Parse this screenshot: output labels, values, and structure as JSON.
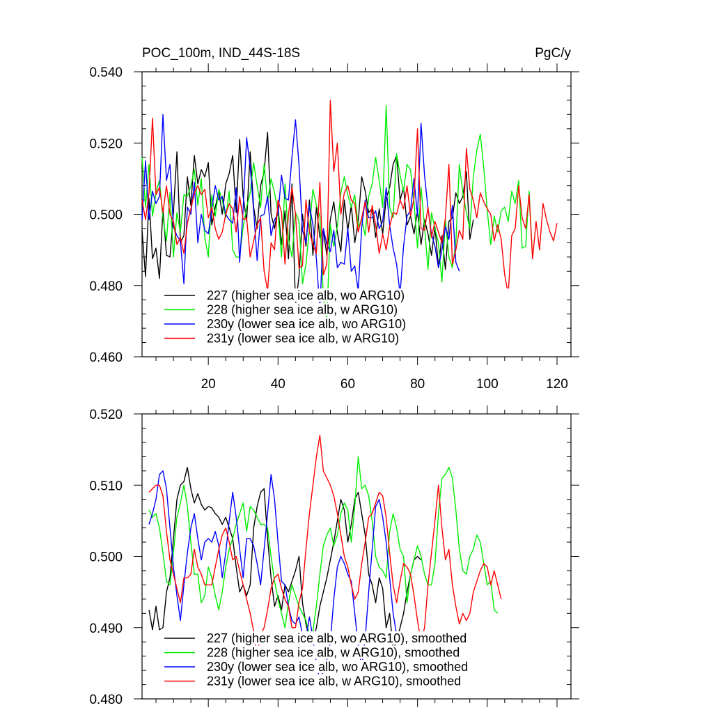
{
  "chart_data": [
    {
      "type": "line",
      "title": "POC_100m, IND_44S-18S",
      "units": "PgC/y",
      "xlabel": "",
      "ylabel": "",
      "xlim": [
        1,
        124
      ],
      "ylim": [
        0.46,
        0.54
      ],
      "xticks": [
        20,
        40,
        60,
        80,
        100,
        120
      ],
      "xtick_labels": [
        "20",
        "40",
        "60",
        "80",
        "100",
        "120"
      ],
      "yticks": [
        0.46,
        0.48,
        0.5,
        0.52,
        0.54
      ],
      "ytick_labels": [
        "0.460",
        "0.480",
        "0.500",
        "0.520",
        "0.540"
      ],
      "legend_position": "bottom-left",
      "series": [
        {
          "name": "227 (higher sea ice alb, wo ARG10)",
          "color": "#000000",
          "x_start": 1,
          "values": [
            0.4955,
            0.4825,
            0.5045,
            0.4875,
            0.4905,
            0.482,
            0.5015,
            0.4885,
            0.488,
            0.5005,
            0.5175,
            0.492,
            0.494,
            0.5105,
            0.5025,
            0.5165,
            0.5085,
            0.5125,
            0.5105,
            0.5145,
            0.497,
            0.502,
            0.5065,
            0.5,
            0.5085,
            0.5115,
            0.5165,
            0.5005,
            0.521,
            0.505,
            0.498,
            0.5175,
            0.502,
            0.496,
            0.508,
            0.512,
            0.523,
            0.5,
            0.496,
            0.502,
            0.4915,
            0.501,
            0.4875,
            0.5085,
            0.4745,
            0.4825,
            0.5,
            0.491,
            0.504,
            0.4885,
            0.502,
            0.4935,
            0.4955,
            0.4885,
            0.4985,
            0.5035,
            0.495,
            0.4895,
            0.504,
            0.4955,
            0.5025,
            0.492,
            0.498,
            0.5105,
            0.5065,
            0.5005,
            0.5015,
            0.4935,
            0.5015,
            0.4945,
            0.5045,
            0.5075,
            0.514,
            0.5165,
            0.504,
            0.5075,
            0.497,
            0.4995,
            0.4945,
            0.501,
            0.4915,
            0.4985,
            0.4945,
            0.4885,
            0.4965,
            0.485,
            0.494,
            0.4845,
            0.498,
            0.499,
            0.506,
            0.503,
            0.505,
            0.512,
            0.493,
            0.4985
          ]
        },
        {
          "name": "228 (higher sea ice alb, w ARG10)",
          "color": "#00ee00",
          "x_start": 1,
          "values": [
            0.516,
            0.502,
            0.514,
            0.4995,
            0.506,
            0.5095,
            0.499,
            0.4925,
            0.506,
            0.488,
            0.5005,
            0.495,
            0.5055,
            0.505,
            0.508,
            0.5125,
            0.5025,
            0.51,
            0.4935,
            0.488,
            0.5055,
            0.4995,
            0.507,
            0.504,
            0.499,
            0.5065,
            0.49,
            0.488,
            0.488,
            0.4965,
            0.502,
            0.506,
            0.5145,
            0.508,
            0.502,
            0.514,
            0.5035,
            0.51,
            0.506,
            0.5005,
            0.488,
            0.5085,
            0.493,
            0.488,
            0.5005,
            0.498,
            0.4805,
            0.486,
            0.496,
            0.507,
            0.5025,
            0.4995,
            0.4765,
            0.47,
            0.497,
            0.491,
            0.4965,
            0.506,
            0.5105,
            0.5055,
            0.502,
            0.5055,
            0.4965,
            0.4985,
            0.494,
            0.505,
            0.5085,
            0.516,
            0.5095,
            0.502,
            0.5305,
            0.502,
            0.499,
            0.517,
            0.511,
            0.5065,
            0.514,
            0.5125,
            0.5035,
            0.4905,
            0.5075,
            0.4965,
            0.4845,
            0.5005,
            0.496,
            0.492,
            0.481,
            0.4985,
            0.488,
            0.485,
            0.492,
            0.514,
            0.506,
            0.5005,
            0.496,
            0.5105,
            0.518,
            0.5225,
            0.513,
            0.501,
            0.4915,
            0.4995,
            0.495,
            0.501,
            0.502,
            0.498,
            0.5065,
            0.503,
            0.5095,
            0.4905,
            0.491,
            0.5065,
            0.4875
          ]
        },
        {
          "name": "230y (lower sea ice alb, wo ARG10)",
          "color": "#0000ff",
          "x_start": 1,
          "values": [
            0.4985,
            0.515,
            0.4985,
            0.5065,
            0.503,
            0.505,
            0.528,
            0.5095,
            0.514,
            0.4965,
            0.494,
            0.4925,
            0.4805,
            0.502,
            0.5,
            0.509,
            0.492,
            0.5,
            0.4955,
            0.4945,
            0.5015,
            0.508,
            0.504,
            0.505,
            0.5,
            0.4985,
            0.4975,
            0.5075,
            0.4865,
            0.5015,
            0.5215,
            0.5135,
            0.501,
            0.487,
            0.4995,
            0.5,
            0.505,
            0.494,
            0.4985,
            0.5,
            0.511,
            0.5045,
            0.504,
            0.516,
            0.5265,
            0.514,
            0.4955,
            0.492,
            0.5025,
            0.497,
            0.4875,
            0.473,
            0.496,
            0.4915,
            0.4895,
            0.4955,
            0.485,
            0.4865,
            0.486,
            0.496,
            0.484,
            0.4855,
            0.4785,
            0.4965,
            0.504,
            0.499,
            0.499,
            0.501,
            0.496,
            0.498,
            0.5075,
            0.497,
            0.4905,
            0.486,
            0.4775,
            0.491,
            0.4995,
            0.501,
            0.51,
            0.4995,
            0.5255,
            0.511,
            0.5015,
            0.4945,
            0.491,
            0.485,
            0.49,
            0.4965,
            0.493,
            0.5025,
            0.4865,
            0.484
          ]
        },
        {
          "name": "231y (lower sea ice alb, w ARG10)",
          "color": "#ff0000",
          "x_start": 1,
          "values": [
            0.504,
            0.4985,
            0.506,
            0.527,
            0.5055,
            0.5075,
            0.5005,
            0.508,
            0.5,
            0.498,
            0.4915,
            0.4935,
            0.489,
            0.4975,
            0.5015,
            0.506,
            0.508,
            0.5055,
            0.507,
            0.499,
            0.502,
            0.496,
            0.493,
            0.495,
            0.5,
            0.503,
            0.5015,
            0.495,
            0.505,
            0.4985,
            0.499,
            0.488,
            0.4925,
            0.497,
            0.499,
            0.484,
            0.4785,
            0.492,
            0.49,
            0.504,
            0.5005,
            0.486,
            0.5,
            0.5075,
            0.5,
            0.485,
            0.4855,
            0.504,
            0.495,
            0.4915,
            0.489,
            0.509,
            0.483,
            0.486,
            0.532,
            0.512,
            0.52,
            0.5,
            0.506,
            0.508,
            0.504,
            0.503,
            0.495,
            0.499,
            0.5035,
            0.495,
            0.5025,
            0.497,
            0.489,
            0.4945,
            0.49,
            0.4965,
            0.5005,
            0.5,
            0.504,
            0.5015,
            0.508,
            0.4995,
            0.5045,
            0.524,
            0.496,
            0.4955,
            0.502,
            0.4935,
            0.498,
            0.495,
            0.492,
            0.499,
            0.514,
            0.486,
            0.49,
            0.4955,
            0.493,
            0.5185,
            0.507,
            0.504,
            0.499,
            0.506,
            0.5035,
            0.5015,
            0.5,
            0.4925,
            0.497,
            0.493,
            0.483,
            0.4775,
            0.494,
            0.496,
            0.508,
            0.499,
            0.496,
            0.5055,
            0.4875,
            0.498,
            0.49,
            0.503,
            0.4985,
            0.495,
            0.4925,
            0.4975
          ]
        }
      ],
      "legend": [
        "227 (higher sea ice alb, wo ARG10)",
        "228 (higher sea ice alb, w ARG10)",
        "230y (lower sea ice alb, wo ARG10)",
        "231y (lower sea ice alb, w ARG10)"
      ]
    },
    {
      "type": "line",
      "title": "",
      "xlabel": "",
      "ylabel": "",
      "xlim": [
        1,
        124
      ],
      "ylim": [
        0.48,
        0.52
      ],
      "xticks": [
        20,
        40,
        60,
        80,
        100,
        120
      ],
      "yticks": [
        0.48,
        0.49,
        0.5,
        0.51,
        0.52
      ],
      "ytick_labels": [
        "0.480",
        "0.490",
        "0.500",
        "0.510",
        "0.520"
      ],
      "legend_position": "bottom-left",
      "series": [
        {
          "name": "227 (higher sea ice alb, wo ARG10), smoothed",
          "color": "#000000",
          "x_start": 3,
          "values": [
            0.4925,
            0.4897,
            0.493,
            0.4897,
            0.49,
            0.495,
            0.497,
            0.5025,
            0.508,
            0.51,
            0.5105,
            0.5125,
            0.5095,
            0.5075,
            0.5088,
            0.5073,
            0.5065,
            0.507,
            0.5068,
            0.506,
            0.5055,
            0.5045,
            0.5055,
            0.504,
            0.5025,
            0.4985,
            0.495,
            0.496,
            0.4945,
            0.496,
            0.504,
            0.507,
            0.509,
            0.5095,
            0.5025,
            0.497,
            0.493,
            0.4945,
            0.4925,
            0.496,
            0.495,
            0.4965,
            0.498,
            0.5,
            0.4935,
            0.4905,
            0.4885,
            0.488,
            0.49,
            0.493,
            0.495,
            0.497,
            0.4995,
            0.502,
            0.505,
            0.508,
            0.5065,
            0.502,
            0.5045,
            0.508,
            0.509,
            0.506,
            0.503,
            0.4975,
            0.496,
            0.4935,
            0.497,
            0.4955,
            0.49,
            0.492,
            0.487,
            0.488,
            0.49,
            0.492,
            0.495,
            0.4975,
            0.4995,
            0.5,
            0.4995
          ]
        },
        {
          "name": "228 (higher sea ice alb, w ARG10), smoothed",
          "color": "#00ee00",
          "x_start": 3,
          "values": [
            0.5065,
            0.5055,
            0.506,
            0.504,
            0.5005,
            0.4965,
            0.496,
            0.5005,
            0.5055,
            0.5075,
            0.51,
            0.507,
            0.502,
            0.4975,
            0.4975,
            0.4935,
            0.4945,
            0.4985,
            0.497,
            0.4945,
            0.4925,
            0.495,
            0.4985,
            0.501,
            0.5025,
            0.5045,
            0.506,
            0.5075,
            0.5035,
            0.507,
            0.5065,
            0.5055,
            0.5045,
            0.5045,
            0.504,
            0.5,
            0.4965,
            0.494,
            0.492,
            0.49,
            0.4935,
            0.496,
            0.4945,
            0.493,
            0.492,
            0.491,
            0.489,
            0.4895,
            0.493,
            0.4975,
            0.5015,
            0.503,
            0.504,
            0.5015,
            0.503,
            0.506,
            0.5075,
            0.5065,
            0.502,
            0.507,
            0.514,
            0.5095,
            0.51,
            0.5085,
            0.505,
            0.5,
            0.4985,
            0.498,
            0.497,
            0.5035,
            0.506,
            0.504,
            0.501,
            0.5,
            0.4935,
            0.4975,
            0.4995,
            0.5015,
            0.5,
            0.4975,
            0.496,
            0.496,
            0.499,
            0.506,
            0.511,
            0.5115,
            0.5125,
            0.511,
            0.5065,
            0.501,
            0.498,
            0.4975,
            0.5,
            0.501,
            0.503,
            0.502,
            0.499,
            0.496,
            0.4965,
            0.4925,
            0.492
          ]
        },
        {
          "name": "230y (lower sea ice alb, wo ARG10), smoothed",
          "color": "#0000ff",
          "x_start": 3,
          "values": [
            0.5045,
            0.506,
            0.508,
            0.5115,
            0.512,
            0.5095,
            0.504,
            0.4985,
            0.4945,
            0.491,
            0.496,
            0.5005,
            0.504,
            0.506,
            0.5025,
            0.4995,
            0.502,
            0.5025,
            0.502,
            0.5035,
            0.5015,
            0.497,
            0.5005,
            0.505,
            0.509,
            0.5055,
            0.501,
            0.497,
            0.5025,
            0.5025,
            0.5015,
            0.499,
            0.496,
            0.501,
            0.506,
            0.5115,
            0.508,
            0.502,
            0.4965,
            0.496,
            0.493,
            0.491,
            0.4905,
            0.4915,
            0.489,
            0.4885,
            0.4915,
            0.4885,
            0.485,
            0.4825,
            0.484,
            0.4855,
            0.488,
            0.494,
            0.4985,
            0.5,
            0.499,
            0.4975,
            0.4965,
            0.492,
            0.4875,
            0.4845,
            0.4885,
            0.495,
            0.501,
            0.507,
            0.508,
            0.5055,
            0.502,
            0.497,
            0.492,
            0.489,
            0.488,
            0.4885,
            0.489
          ]
        },
        {
          "name": "231y (lower sea ice alb, w ARG10), smoothed",
          "color": "#ff0000",
          "x_start": 3,
          "values": [
            0.509,
            0.5095,
            0.51,
            0.51,
            0.5085,
            0.5035,
            0.4995,
            0.4975,
            0.4955,
            0.4935,
            0.497,
            0.497,
            0.4975,
            0.501,
            0.4985,
            0.4975,
            0.496,
            0.496,
            0.496,
            0.4985,
            0.501,
            0.503,
            0.504,
            0.502,
            0.4995,
            0.5,
            0.498,
            0.496,
            0.494,
            0.492,
            0.4895,
            0.486,
            0.489,
            0.49,
            0.4925,
            0.4955,
            0.497,
            0.4975,
            0.4955,
            0.494,
            0.493,
            0.49,
            0.49,
            0.4935,
            0.4955,
            0.501,
            0.506,
            0.51,
            0.514,
            0.517,
            0.512,
            0.511,
            0.51,
            0.5085,
            0.506,
            0.503,
            0.5,
            0.4985,
            0.496,
            0.494,
            0.495,
            0.499,
            0.502,
            0.5055,
            0.506,
            0.5075,
            0.509,
            0.5085,
            0.5055,
            0.5005,
            0.496,
            0.4935,
            0.4965,
            0.499,
            0.4985,
            0.4975,
            0.4945,
            0.491,
            0.488,
            0.49,
            0.496,
            0.5005,
            0.505,
            0.51,
            0.504,
            0.4995,
            0.501,
            0.496,
            0.493,
            0.4905,
            0.492,
            0.491,
            0.492,
            0.495,
            0.4965,
            0.498,
            0.499,
            0.4985,
            0.496,
            0.498,
            0.496,
            0.494
          ]
        }
      ],
      "legend": [
        "227 (higher sea ice alb, wo ARG10), smoothed",
        "228 (higher sea ice alb, w ARG10), smoothed",
        "230y (lower sea ice alb, wo ARG10), smoothed",
        "231y (lower sea ice alb, w ARG10), smoothed"
      ]
    }
  ]
}
